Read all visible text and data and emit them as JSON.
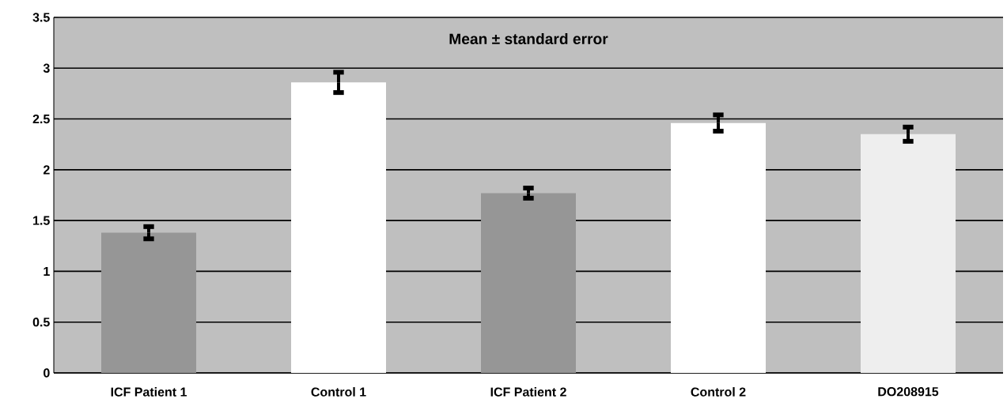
{
  "chart_data": {
    "type": "bar",
    "annotations": [
      "Mean ± standard error"
    ],
    "categories": [
      "ICF Patient 1",
      "Control 1",
      "ICF Patient 2",
      "Control 2",
      "DO208915"
    ],
    "values": [
      1.38,
      2.86,
      1.77,
      2.46,
      2.35
    ],
    "errors": [
      0.06,
      0.1,
      0.05,
      0.08,
      0.07
    ],
    "colors": [
      "#969696",
      "#ffffff",
      "#969696",
      "#ffffff",
      "#eeeeee"
    ],
    "ylim": [
      0,
      3.5
    ],
    "yticks": [
      0,
      0.5,
      1,
      1.5,
      2,
      2.5,
      3,
      3.5
    ],
    "grid": "y"
  }
}
